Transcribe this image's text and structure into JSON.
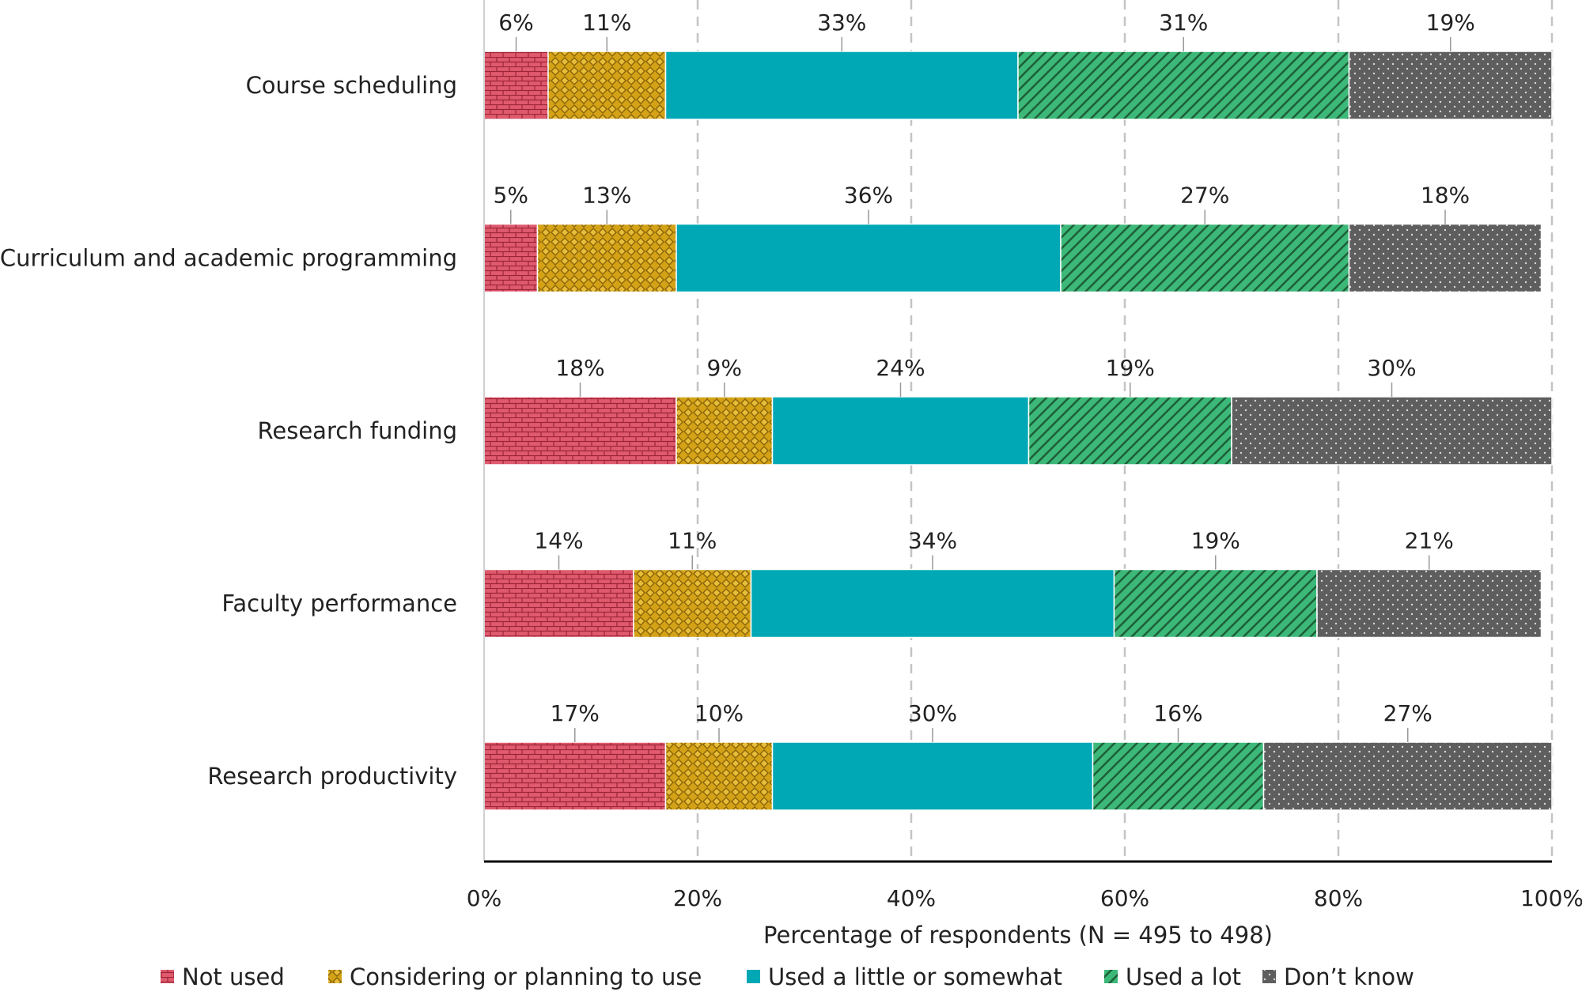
{
  "chart_data": {
    "type": "bar",
    "orientation": "horizontal",
    "stacked": true,
    "categories": [
      "Course scheduling",
      "Curriculum and academic programming",
      "Research funding",
      "Faculty performance",
      "Research productivity"
    ],
    "series": [
      {
        "name": "Not used",
        "values": [
          6,
          5,
          18,
          14,
          17
        ],
        "color": "#e05a6d",
        "pattern": "brick"
      },
      {
        "name": "Considering or planning to use",
        "values": [
          11,
          13,
          9,
          11,
          10
        ],
        "color": "#d4a216",
        "pattern": "checker"
      },
      {
        "name": "Used a little or somewhat",
        "values": [
          33,
          36,
          24,
          34,
          30
        ],
        "color": "#00a8b5",
        "pattern": "solid"
      },
      {
        "name": "Used a lot",
        "values": [
          31,
          27,
          19,
          19,
          16
        ],
        "color": "#3cb878",
        "pattern": "diagonal-stripe"
      },
      {
        "name": "Don’t know",
        "values": [
          19,
          18,
          30,
          21,
          27
        ],
        "color": "#5e5e5e",
        "pattern": "dots"
      }
    ],
    "xlabel": "Percentage of respondents (N = 495 to 498)",
    "ylabel": "",
    "xlim": [
      0,
      100
    ],
    "xticks": [
      "0%",
      "20%",
      "40%",
      "60%",
      "80%",
      "100%"
    ],
    "value_suffix": "%",
    "grid": "vertical dashed",
    "legend_position": "bottom"
  }
}
